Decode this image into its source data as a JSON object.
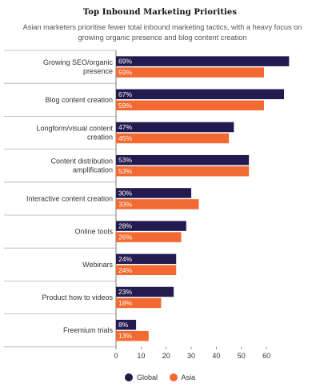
{
  "title": "Top Inbound Marketing Priorities",
  "subtitle": "Asian marketers prioritise fewer total inbound marketing tactics, with a heavy focus on growing organic presence and blog content creation",
  "colors": {
    "global": "#231a4f",
    "asia": "#f26a31",
    "grid": "#cfcfcf",
    "axis": "#777777"
  },
  "chart_data": {
    "type": "bar",
    "orientation": "horizontal",
    "title": "Top Inbound Marketing Priorities",
    "subtitle": "Asian marketers prioritise fewer total inbound marketing tactics, with a heavy focus on growing organic presence and blog content creation",
    "categories": [
      [
        "Growing SEO/organic",
        "presence"
      ],
      [
        "Blog content creation"
      ],
      [
        "Longform/visual content",
        "creation"
      ],
      [
        "Content distribution",
        "amplification"
      ],
      [
        "Interactive content creation"
      ],
      [
        "Online tools"
      ],
      [
        "Webinars"
      ],
      [
        "Product how to videos"
      ],
      [
        "Freemium trials"
      ]
    ],
    "series": [
      {
        "name": "Global",
        "values": [
          69,
          67,
          47,
          53,
          30,
          28,
          24,
          23,
          8
        ],
        "labels": [
          "69%",
          "67%",
          "47%",
          "53%",
          "30%",
          "28%",
          "24%",
          "23%",
          "8%"
        ]
      },
      {
        "name": "Asia",
        "values": [
          59,
          59,
          45,
          53,
          33,
          26,
          24,
          18,
          13
        ],
        "labels": [
          "59%",
          "59%",
          "45%",
          "53%",
          "33%",
          "26%",
          "24%",
          "18%",
          "13%"
        ]
      }
    ],
    "xticks": [
      0,
      10,
      20,
      30,
      40,
      50,
      60
    ],
    "xlim": [
      0,
      70
    ],
    "legend_position": "bottom"
  }
}
